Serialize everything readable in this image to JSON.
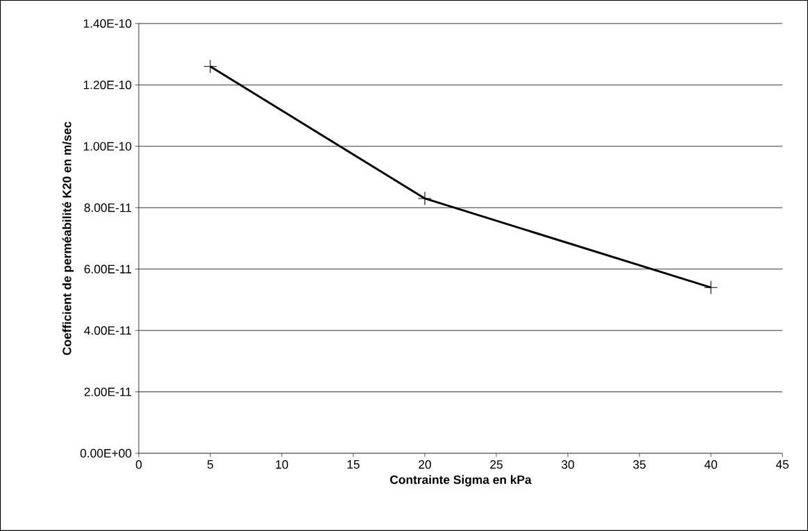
{
  "chart_data": {
    "type": "line",
    "xlabel": "Contrainte Sigma en kPa",
    "ylabel": "Coefficient de perméabilité K20 en m/sec",
    "x": [
      5,
      20,
      40
    ],
    "series": [
      {
        "color": "#000000",
        "values": [
          1.26e-10,
          8.3e-11,
          5.4e-11
        ]
      }
    ],
    "xlim": [
      0,
      45
    ],
    "xticks": [
      0,
      5,
      10,
      15,
      20,
      25,
      30,
      35,
      40,
      45
    ],
    "ylim": [
      0,
      1.4e-10
    ],
    "yticks": [
      {
        "value": 0,
        "label": "0.00E+00"
      },
      {
        "value": 2e-11,
        "label": "2.00E-11"
      },
      {
        "value": 4e-11,
        "label": "4.00E-11"
      },
      {
        "value": 6e-11,
        "label": "6.00E-11"
      },
      {
        "value": 8e-11,
        "label": "8.00E-11"
      },
      {
        "value": 1e-10,
        "label": "1.00E-10"
      },
      {
        "value": 1.2e-10,
        "label": "1.20E-10"
      },
      {
        "value": 1.4e-10,
        "label": "1.40E-10"
      }
    ],
    "grid": "y",
    "marker": "cross",
    "line_style": "solid"
  }
}
